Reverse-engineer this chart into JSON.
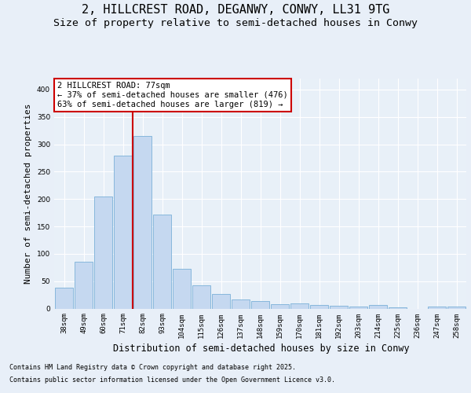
{
  "title1": "2, HILLCREST ROAD, DEGANWY, CONWY, LL31 9TG",
  "title2": "Size of property relative to semi-detached houses in Conwy",
  "xlabel": "Distribution of semi-detached houses by size in Conwy",
  "ylabel": "Number of semi-detached properties",
  "categories": [
    "38sqm",
    "49sqm",
    "60sqm",
    "71sqm",
    "82sqm",
    "93sqm",
    "104sqm",
    "115sqm",
    "126sqm",
    "137sqm",
    "148sqm",
    "159sqm",
    "170sqm",
    "181sqm",
    "192sqm",
    "203sqm",
    "214sqm",
    "225sqm",
    "236sqm",
    "247sqm",
    "258sqm"
  ],
  "values": [
    38,
    85,
    205,
    280,
    315,
    172,
    72,
    42,
    27,
    16,
    13,
    8,
    10,
    6,
    5,
    3,
    7,
    2,
    0,
    3,
    4
  ],
  "bar_color": "#c5d8f0",
  "bar_edge_color": "#7ab0d8",
  "annotation_text_line1": "2 HILLCREST ROAD: 77sqm",
  "annotation_text_line2": "← 37% of semi-detached houses are smaller (476)",
  "annotation_text_line3": "63% of semi-detached houses are larger (819) →",
  "vline_color": "#cc0000",
  "ylim": [
    0,
    420
  ],
  "yticks": [
    0,
    50,
    100,
    150,
    200,
    250,
    300,
    350,
    400
  ],
  "bg_color": "#e8eff8",
  "plot_bg_color": "#e8f0f8",
  "footer1": "Contains HM Land Registry data © Crown copyright and database right 2025.",
  "footer2": "Contains public sector information licensed under the Open Government Licence v3.0.",
  "title_fontsize": 11,
  "subtitle_fontsize": 9.5,
  "tick_fontsize": 6.5,
  "ylabel_fontsize": 8,
  "xlabel_fontsize": 8.5,
  "annotation_fontsize": 7.5,
  "footer_fontsize": 6.0
}
